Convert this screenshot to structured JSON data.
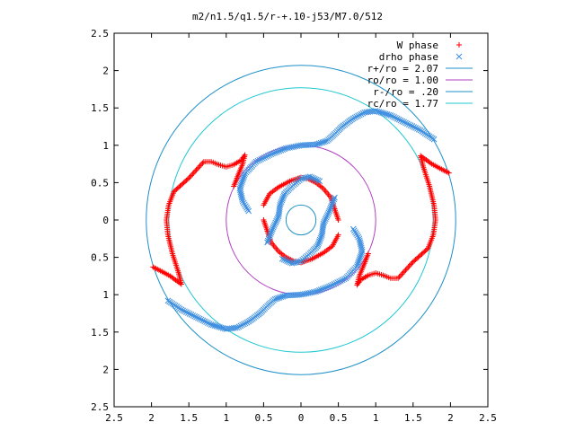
{
  "chart_data": {
    "type": "scatter",
    "title": "m2/n1.5/q1.5/r-+.10-j53/M7.0/512",
    "xlabel": "",
    "ylabel": "",
    "xlim": [
      -2.5,
      2.5
    ],
    "ylim": [
      -2.5,
      2.5
    ],
    "x_ticks": [
      -2.5,
      -2,
      -1.5,
      -1,
      -0.5,
      0,
      0.5,
      1,
      1.5,
      2,
      2.5
    ],
    "x_tick_labels": [
      "2.5",
      "2",
      "1.5",
      "1",
      "0.5",
      "0",
      "0.5",
      "1",
      "1.5",
      "2",
      "2.5"
    ],
    "y_ticks": [
      2.5,
      2,
      1.5,
      1,
      0.5,
      0,
      -0.5,
      -1,
      -1.5,
      -2,
      -2.5
    ],
    "y_tick_labels": [
      "2.5",
      "2",
      "1.5",
      "1",
      "0.5",
      "0",
      "0.5",
      "1",
      "1.5",
      "2",
      "2.5"
    ],
    "grid": false,
    "legend_position": "top-right",
    "legend": [
      {
        "label": "W phase",
        "kind": "plus",
        "color": "#ff0000"
      },
      {
        "label": "drho phase",
        "kind": "cross",
        "color": "#3f8fe0"
      },
      {
        "label": "r+/ro = 2.07",
        "kind": "line",
        "color": "#1e90c8"
      },
      {
        "label": "ro/ro = 1.00",
        "kind": "line",
        "color": "#b040c0"
      },
      {
        "label": "r-/ro = .20",
        "kind": "line",
        "color": "#1e90c8"
      },
      {
        "label": "rc/ro = 1.77",
        "kind": "line",
        "color": "#20c8d0"
      }
    ],
    "circles": [
      {
        "name": "r+/ro",
        "radius": 2.07,
        "color": "#1e90c8"
      },
      {
        "name": "ro/ro",
        "radius": 1.0,
        "color": "#b040c0"
      },
      {
        "name": "r-/ro",
        "radius": 0.2,
        "color": "#1e90c8"
      },
      {
        "name": "rc/ro",
        "radius": 1.77,
        "color": "#20c8d0"
      }
    ],
    "series": [
      {
        "name": "W phase",
        "marker": "plus",
        "color": "#ff0000",
        "paths": [
          [
            [
              -1.98,
              -0.63
            ],
            [
              -1.88,
              -0.68
            ],
            [
              -1.75,
              -0.75
            ],
            [
              -1.6,
              -0.86
            ],
            [
              -1.64,
              -0.7
            ],
            [
              -1.72,
              -0.45
            ],
            [
              -1.78,
              -0.2
            ],
            [
              -1.8,
              0.0
            ],
            [
              -1.77,
              0.2
            ],
            [
              -1.7,
              0.38
            ],
            [
              -1.6,
              0.47
            ],
            [
              -1.5,
              0.56
            ],
            [
              -1.4,
              0.67
            ],
            [
              -1.3,
              0.78
            ],
            [
              -1.2,
              0.78
            ],
            [
              -1.1,
              0.74
            ],
            [
              -1.0,
              0.71
            ],
            [
              -0.9,
              0.74
            ],
            [
              -0.8,
              0.8
            ],
            [
              -0.75,
              0.87
            ],
            [
              -0.78,
              0.75
            ],
            [
              -0.85,
              0.58
            ],
            [
              -0.9,
              0.45
            ]
          ],
          [
            [
              1.98,
              0.63
            ],
            [
              1.88,
              0.68
            ],
            [
              1.75,
              0.75
            ],
            [
              1.6,
              0.86
            ],
            [
              1.64,
              0.7
            ],
            [
              1.72,
              0.45
            ],
            [
              1.78,
              0.2
            ],
            [
              1.8,
              0.0
            ],
            [
              1.77,
              -0.2
            ],
            [
              1.7,
              -0.38
            ],
            [
              1.6,
              -0.47
            ],
            [
              1.5,
              -0.56
            ],
            [
              1.4,
              -0.67
            ],
            [
              1.3,
              -0.78
            ],
            [
              1.2,
              -0.78
            ],
            [
              1.1,
              -0.74
            ],
            [
              1.0,
              -0.71
            ],
            [
              0.9,
              -0.74
            ],
            [
              0.8,
              -0.8
            ],
            [
              0.75,
              -0.87
            ],
            [
              0.78,
              -0.75
            ],
            [
              0.85,
              -0.58
            ],
            [
              0.9,
              -0.45
            ]
          ],
          [
            [
              -0.5,
              0.0
            ],
            [
              -0.45,
              -0.15
            ],
            [
              -0.4,
              -0.3
            ],
            [
              -0.3,
              -0.42
            ],
            [
              -0.2,
              -0.5
            ],
            [
              -0.1,
              -0.55
            ],
            [
              0.0,
              -0.57
            ],
            [
              0.15,
              -0.52
            ],
            [
              0.3,
              -0.44
            ],
            [
              0.42,
              -0.35
            ],
            [
              0.5,
              -0.2
            ]
          ],
          [
            [
              0.5,
              0.0
            ],
            [
              0.45,
              0.15
            ],
            [
              0.4,
              0.3
            ],
            [
              0.3,
              0.42
            ],
            [
              0.2,
              0.5
            ],
            [
              0.1,
              0.55
            ],
            [
              0.0,
              0.57
            ],
            [
              -0.15,
              0.52
            ],
            [
              -0.3,
              0.44
            ],
            [
              -0.42,
              0.35
            ],
            [
              -0.5,
              0.2
            ]
          ]
        ]
      },
      {
        "name": "drho phase",
        "marker": "cross",
        "color": "#3f8fe0",
        "paths": [
          [
            [
              -1.78,
              -1.08
            ],
            [
              -1.6,
              -1.2
            ],
            [
              -1.4,
              -1.3
            ],
            [
              -1.2,
              -1.4
            ],
            [
              -1.0,
              -1.46
            ],
            [
              -0.85,
              -1.44
            ],
            [
              -0.7,
              -1.36
            ],
            [
              -0.55,
              -1.25
            ],
            [
              -0.45,
              -1.15
            ],
            [
              -0.35,
              -1.06
            ],
            [
              -0.2,
              -1.01
            ],
            [
              0.0,
              -1.0
            ],
            [
              0.2,
              -0.96
            ],
            [
              0.4,
              -0.88
            ],
            [
              0.6,
              -0.78
            ],
            [
              0.75,
              -0.62
            ],
            [
              0.82,
              -0.42
            ],
            [
              0.78,
              -0.25
            ],
            [
              0.7,
              -0.12
            ]
          ],
          [
            [
              1.78,
              1.08
            ],
            [
              1.6,
              1.2
            ],
            [
              1.4,
              1.3
            ],
            [
              1.2,
              1.4
            ],
            [
              1.0,
              1.46
            ],
            [
              0.85,
              1.44
            ],
            [
              0.7,
              1.36
            ],
            [
              0.55,
              1.25
            ],
            [
              0.45,
              1.15
            ],
            [
              0.35,
              1.06
            ],
            [
              0.2,
              1.01
            ],
            [
              0.0,
              1.0
            ],
            [
              -0.2,
              0.96
            ],
            [
              -0.4,
              0.88
            ],
            [
              -0.6,
              0.78
            ],
            [
              -0.75,
              0.62
            ],
            [
              -0.82,
              0.42
            ],
            [
              -0.78,
              0.25
            ],
            [
              -0.7,
              0.12
            ]
          ],
          [
            [
              -0.45,
              -0.3
            ],
            [
              -0.38,
              -0.12
            ],
            [
              -0.3,
              0.05
            ],
            [
              -0.28,
              0.2
            ],
            [
              -0.22,
              0.35
            ],
            [
              -0.12,
              0.45
            ],
            [
              0.0,
              0.55
            ],
            [
              0.12,
              0.58
            ],
            [
              0.25,
              0.52
            ]
          ],
          [
            [
              0.45,
              0.3
            ],
            [
              0.38,
              0.12
            ],
            [
              0.3,
              -0.05
            ],
            [
              0.28,
              -0.2
            ],
            [
              0.22,
              -0.35
            ],
            [
              0.12,
              -0.45
            ],
            [
              0.0,
              -0.55
            ],
            [
              -0.12,
              -0.58
            ],
            [
              -0.25,
              -0.52
            ]
          ]
        ]
      }
    ]
  }
}
